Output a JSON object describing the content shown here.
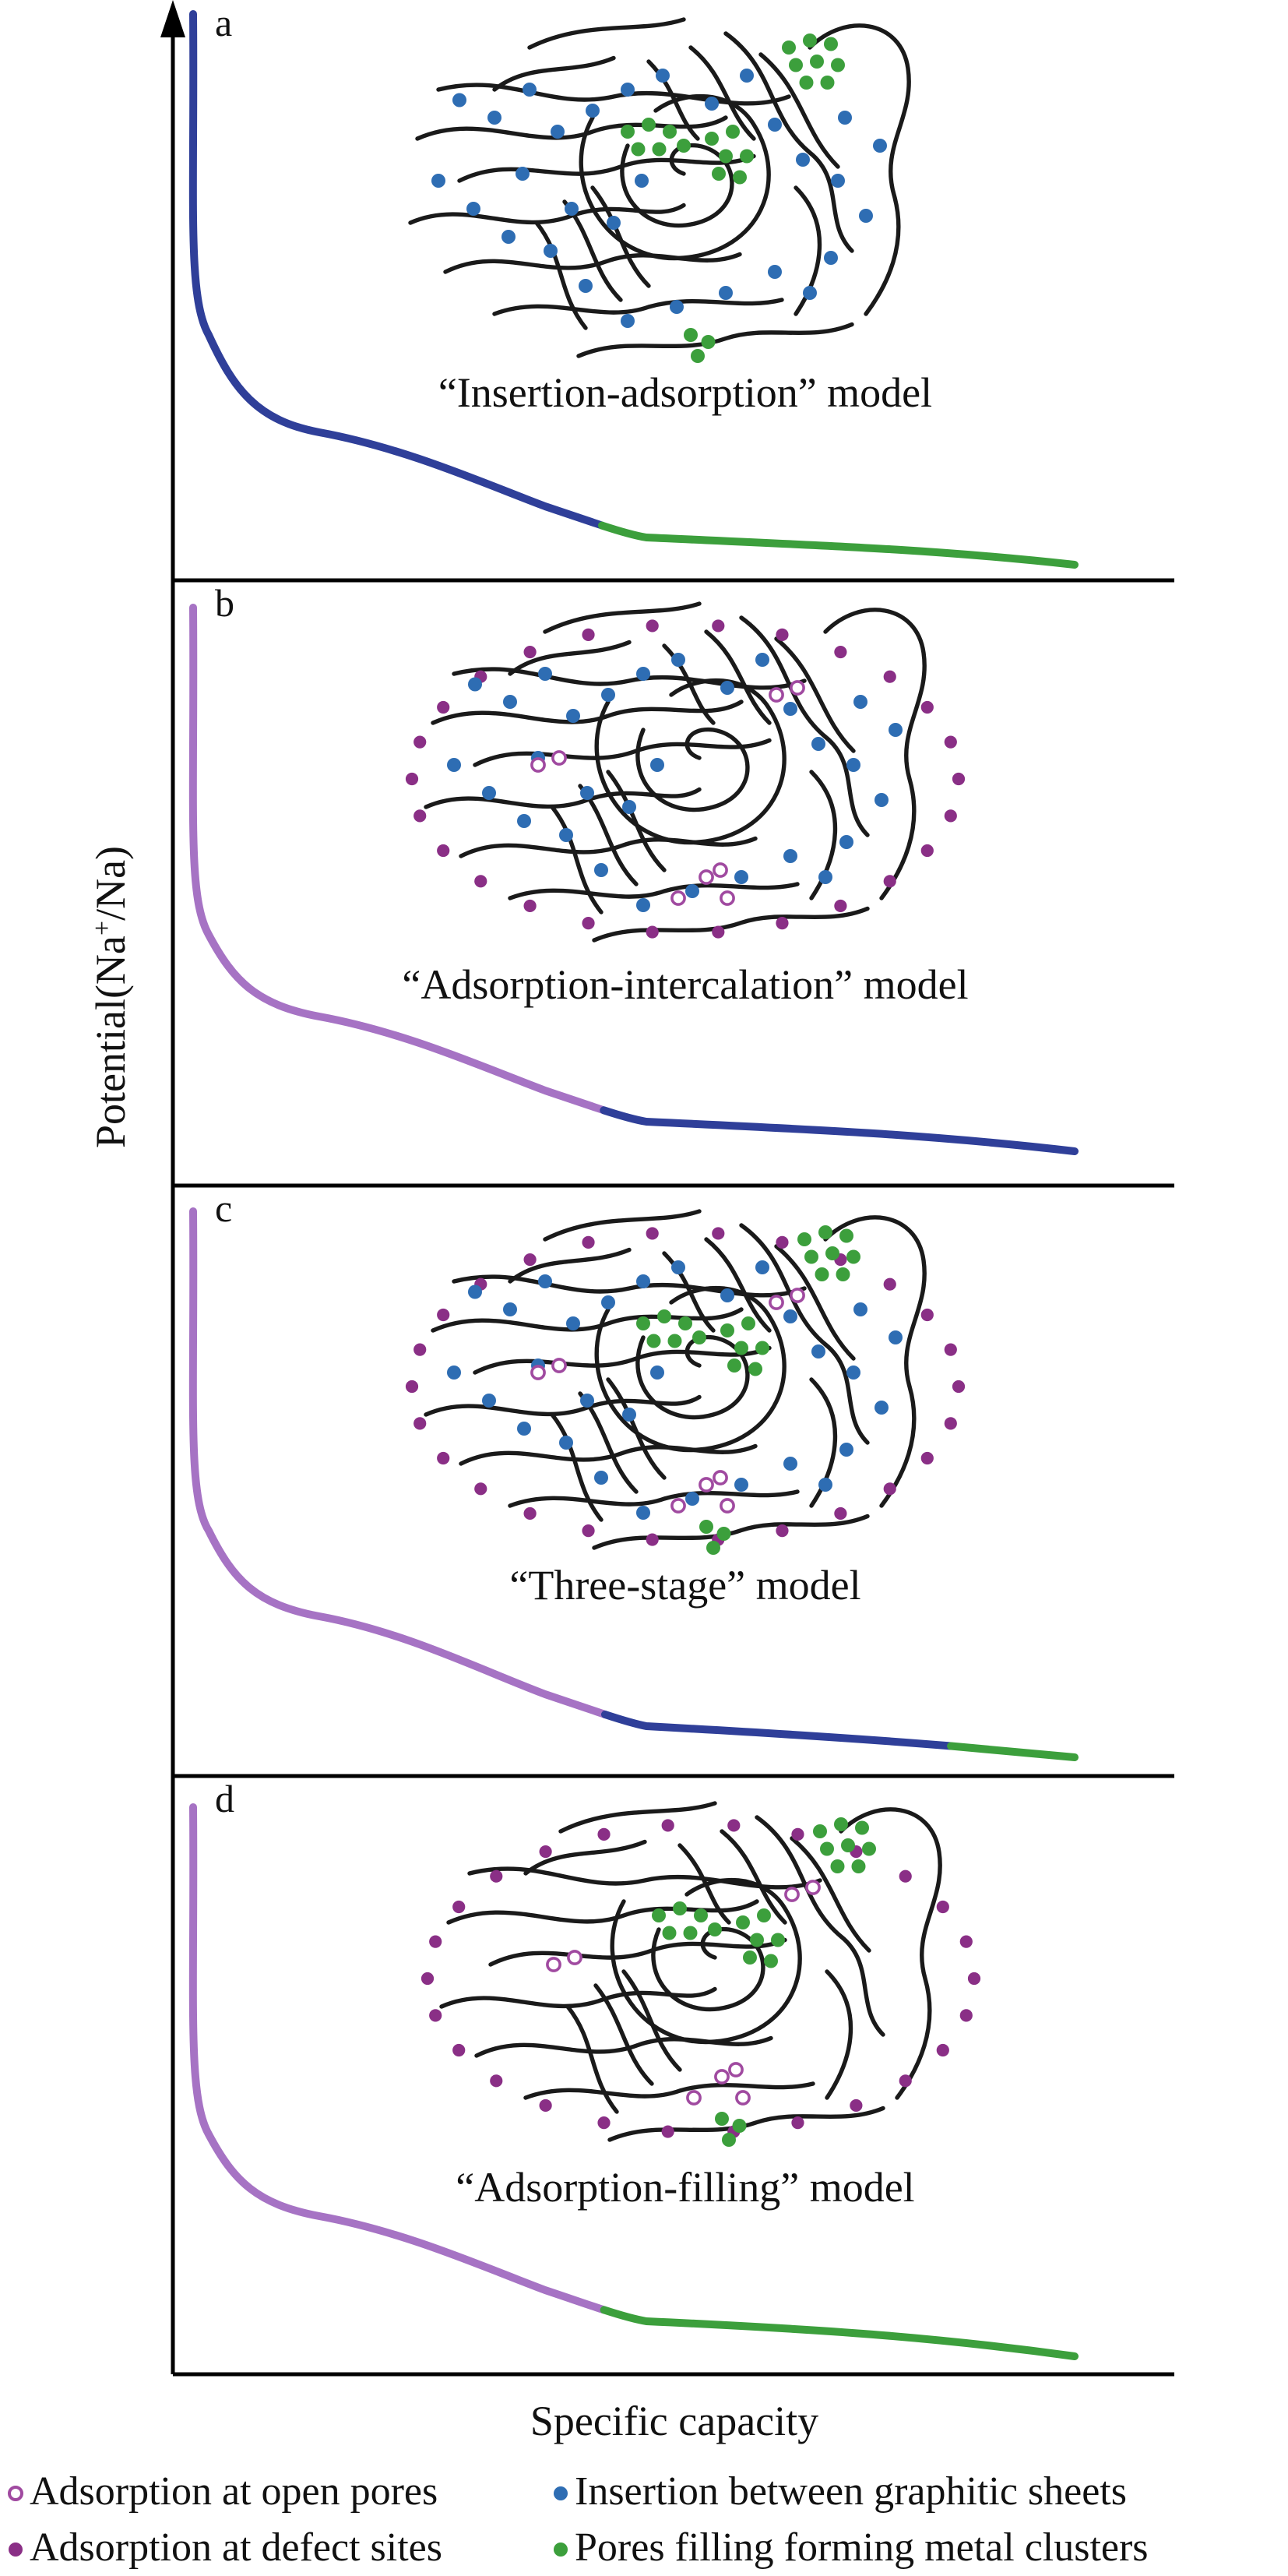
{
  "colors": {
    "insertion_blue": "#2f3f99",
    "insertion_dot_blue": "#2e6db3",
    "adsorption_purple": "#a673c4",
    "defect_purple": "#8a2f86",
    "filling_green": "#3c9f3c",
    "open_pore_ring": "#a04aa0"
  },
  "axes": {
    "ylabel_main": "Potential(Na",
    "ylabel_sup": "+",
    "ylabel_end": "/Na)",
    "xlabel": "Specific capacity"
  },
  "panels": [
    {
      "letter": "a",
      "model": "“Insertion-adsorption” model",
      "curve_segments": [
        "insertion",
        "filling"
      ],
      "particle_dots": [
        "insertion",
        "filling"
      ]
    },
    {
      "letter": "b",
      "model": "“Adsorption-intercalation” model",
      "curve_segments": [
        "adsorption",
        "insertion"
      ],
      "particle_dots": [
        "defect",
        "open_pore",
        "insertion"
      ]
    },
    {
      "letter": "c",
      "model": "“Three-stage” model",
      "curve_segments": [
        "adsorption",
        "insertion",
        "filling"
      ],
      "particle_dots": [
        "defect",
        "open_pore",
        "insertion",
        "filling"
      ]
    },
    {
      "letter": "d",
      "model": "“Adsorption-filling” model",
      "curve_segments": [
        "adsorption",
        "filling"
      ],
      "particle_dots": [
        "defect",
        "open_pore",
        "filling"
      ]
    }
  ],
  "legend": [
    {
      "marker": "open-ring",
      "color": "#a04aa0",
      "label": "Adsorption at open pores"
    },
    {
      "marker": "dot",
      "color": "#2e6db3",
      "label": "Insertion between graphitic sheets"
    },
    {
      "marker": "dot",
      "color": "#8a2f86",
      "label": "Adsorption at defect sites"
    },
    {
      "marker": "dot",
      "color": "#3c9f3c",
      "label": "Pores filling forming metal clusters"
    }
  ]
}
